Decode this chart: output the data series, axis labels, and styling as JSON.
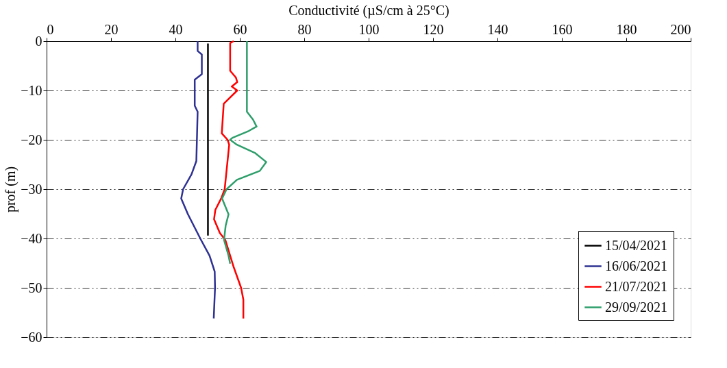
{
  "chart_data": {
    "type": "line",
    "orientation": "horizontal",
    "xlabel": "Conductivité (µS/cm à 25°C)",
    "ylabel": "prof (m)",
    "xlim": [
      0,
      200
    ],
    "xticks": [
      0,
      20,
      40,
      60,
      80,
      100,
      120,
      140,
      160,
      180,
      200
    ],
    "ylim": [
      -60,
      0
    ],
    "yticks": [
      0,
      -10,
      -20,
      -30,
      -40,
      -50,
      -60
    ],
    "grid": "y",
    "legend": "bottom right",
    "marker": "none",
    "line_style": "solid",
    "series": [
      {
        "name": "15/04/2021",
        "color": "#000000",
        "x": [
          -0.5,
          -39.4
        ],
        "values": [
          50.1,
          50.1
        ]
      },
      {
        "name": "16/06/2021",
        "color": "#2e3192",
        "x": [
          0,
          -2.0,
          -2.7,
          -6.7,
          -7.8,
          -13.1,
          -14.3,
          -24.3,
          -27,
          -30,
          -31.9,
          -35.1,
          -40.1,
          -43.5,
          -46.7,
          -50,
          -56.2
        ],
        "values": [
          46.9,
          46.9,
          48.2,
          48.2,
          46.0,
          46.0,
          46.9,
          46.5,
          45.0,
          42.4,
          41.8,
          43.9,
          47.8,
          50.6,
          52.2,
          52.3,
          51.9
        ]
      },
      {
        "name": "21/07/2021",
        "color": "#ff0000",
        "x": [
          0,
          -0.4,
          -6,
          -7.4,
          -8.3,
          -9.2,
          -10,
          -12.7,
          -18.7,
          -20,
          -21,
          -30,
          -31.9,
          -34.2,
          -36.1,
          -38.9,
          -40.3,
          -45.8,
          -50,
          -52.4,
          -56.2
        ],
        "values": [
          58.1,
          57.0,
          57.0,
          58.8,
          59.2,
          57.5,
          59.2,
          55.0,
          54.4,
          56.2,
          56.7,
          55.3,
          54.2,
          52.4,
          52.0,
          53.8,
          55.5,
          58.1,
          60.4,
          61.1,
          61.1
        ]
      },
      {
        "name": "29/09/2021",
        "color": "#2e9e6b",
        "x": [
          0,
          -14.3,
          -15.9,
          -17.3,
          -18.2,
          -19.6,
          -20,
          -21,
          -22.7,
          -24.5,
          -26.3,
          -28.1,
          -30,
          -31.9,
          -35.1,
          -37.4,
          -40.3,
          -43.5,
          -45.1
        ],
        "values": [
          62.2,
          62.2,
          64.1,
          65.2,
          62.8,
          57.7,
          57.0,
          59.1,
          64.8,
          68.2,
          66.2,
          59.1,
          55.9,
          54.5,
          56.5,
          55.6,
          55.1,
          56.5,
          57.0
        ]
      }
    ]
  }
}
